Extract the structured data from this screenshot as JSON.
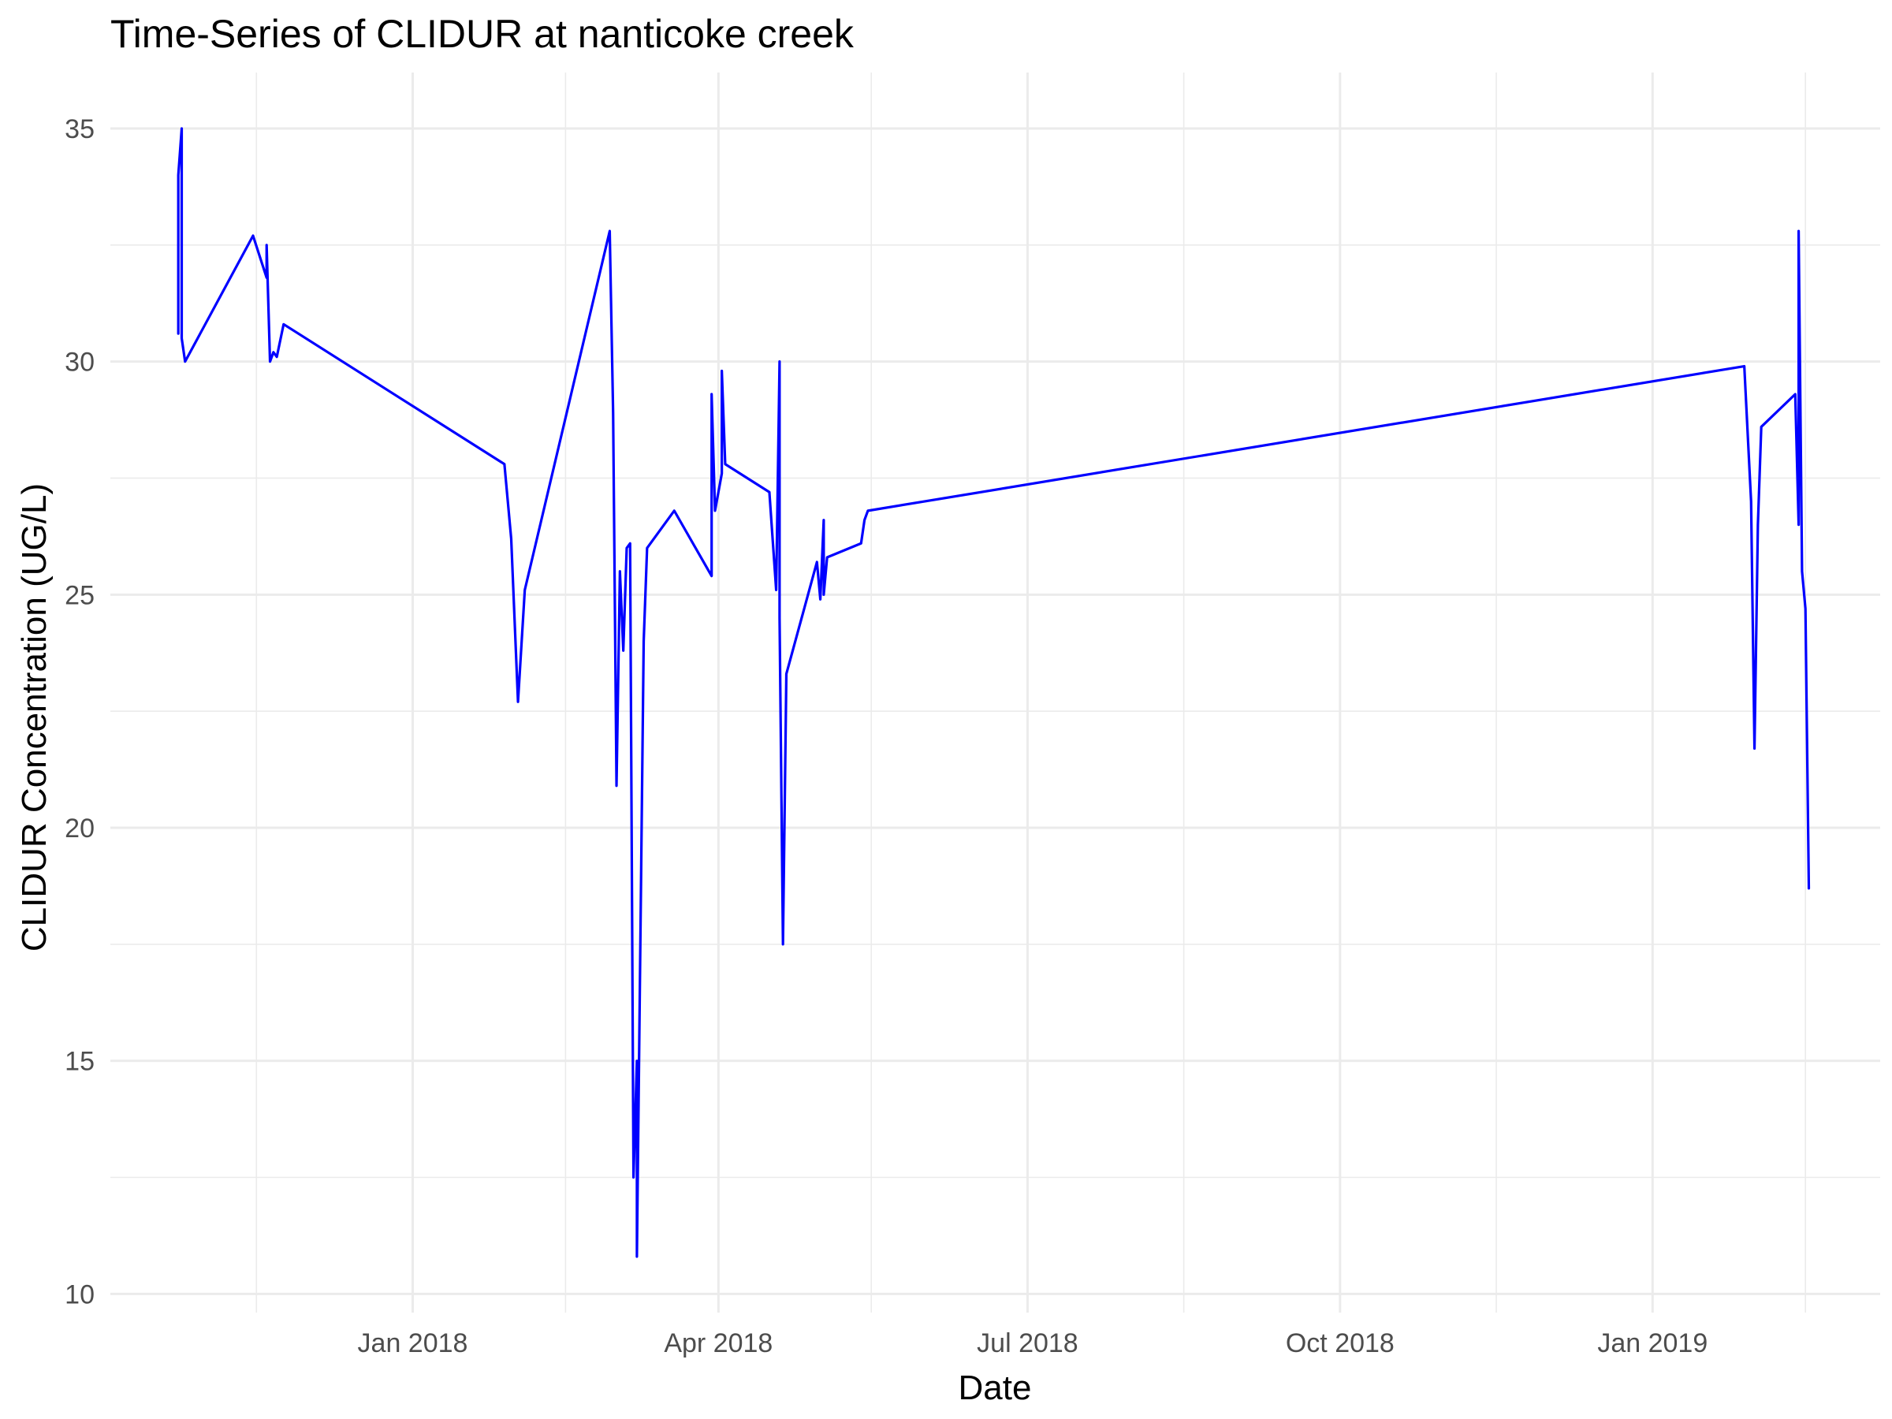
{
  "chart_data": {
    "type": "line",
    "title": "Time-Series of CLIDUR at nanticoke creek",
    "xlabel": "Date",
    "ylabel": "CLIDUR Concentration (UG/L)",
    "x_tick_labels": [
      {
        "date": "2018-01-01",
        "label": "Jan 2018"
      },
      {
        "date": "2018-04-01",
        "label": "Apr 2018"
      },
      {
        "date": "2018-07-01",
        "label": "Jul 2018"
      },
      {
        "date": "2018-10-01",
        "label": "Oct 2018"
      },
      {
        "date": "2019-01-01",
        "label": "Jan 2019"
      }
    ],
    "x_minor_dates": [
      "2017-11-16",
      "2018-02-15",
      "2018-05-16",
      "2018-08-16",
      "2018-11-16",
      "2019-02-15"
    ],
    "xlim": [
      "2017-10-04",
      "2019-03-09"
    ],
    "y_ticks": [
      10,
      15,
      20,
      25,
      30,
      35
    ],
    "y_minor": [
      12.5,
      17.5,
      22.5,
      27.5,
      32.5
    ],
    "ylim": [
      9.6,
      36.2
    ],
    "grid": true,
    "legend": "none",
    "series": [
      {
        "color": "#0000ff",
        "points": [
          [
            "2017-10-24",
            30.6
          ],
          [
            "2017-10-24",
            34.0
          ],
          [
            "2017-10-25",
            35.0
          ],
          [
            "2017-10-25",
            30.5
          ],
          [
            "2017-10-26",
            30.0
          ],
          [
            "2017-11-15",
            32.7
          ],
          [
            "2017-11-19",
            31.8
          ],
          [
            "2017-11-19",
            32.5
          ],
          [
            "2017-11-20",
            30.0
          ],
          [
            "2017-11-21",
            30.2
          ],
          [
            "2017-11-22",
            30.1
          ],
          [
            "2017-11-24",
            30.8
          ],
          [
            "2018-01-28",
            27.8
          ],
          [
            "2018-01-30",
            26.2
          ],
          [
            "2018-02-01",
            22.7
          ],
          [
            "2018-02-03",
            25.1
          ],
          [
            "2018-02-28",
            32.8
          ],
          [
            "2018-03-01",
            28.9
          ],
          [
            "2018-03-02",
            20.9
          ],
          [
            "2018-03-03",
            25.5
          ],
          [
            "2018-03-04",
            23.8
          ],
          [
            "2018-03-05",
            26.0
          ],
          [
            "2018-03-06",
            26.1
          ],
          [
            "2018-03-07",
            12.5
          ],
          [
            "2018-03-08",
            15.0
          ],
          [
            "2018-03-08",
            10.8
          ],
          [
            "2018-03-10",
            24.0
          ],
          [
            "2018-03-11",
            26.0
          ],
          [
            "2018-03-19",
            26.8
          ],
          [
            "2018-03-30",
            25.4
          ],
          [
            "2018-03-30",
            29.3
          ],
          [
            "2018-03-31",
            26.8
          ],
          [
            "2018-04-02",
            27.6
          ],
          [
            "2018-04-02",
            29.8
          ],
          [
            "2018-04-03",
            27.8
          ],
          [
            "2018-04-16",
            27.2
          ],
          [
            "2018-04-18",
            25.1
          ],
          [
            "2018-04-19",
            30.0
          ],
          [
            "2018-04-19",
            24.5
          ],
          [
            "2018-04-20",
            17.5
          ],
          [
            "2018-04-21",
            23.3
          ],
          [
            "2018-04-30",
            25.7
          ],
          [
            "2018-05-01",
            24.9
          ],
          [
            "2018-05-02",
            26.6
          ],
          [
            "2018-05-02",
            25.0
          ],
          [
            "2018-05-03",
            25.8
          ],
          [
            "2018-05-13",
            26.1
          ],
          [
            "2018-05-14",
            26.6
          ],
          [
            "2018-05-15",
            26.8
          ],
          [
            "2019-01-28",
            29.9
          ],
          [
            "2019-01-30",
            27.0
          ],
          [
            "2019-01-31",
            21.7
          ],
          [
            "2019-02-01",
            26.5
          ],
          [
            "2019-02-02",
            28.6
          ],
          [
            "2019-02-12",
            29.3
          ],
          [
            "2019-02-13",
            26.5
          ],
          [
            "2019-02-13",
            32.8
          ],
          [
            "2019-02-14",
            25.5
          ],
          [
            "2019-02-15",
            24.7
          ],
          [
            "2019-02-16",
            18.7
          ]
        ]
      }
    ]
  }
}
